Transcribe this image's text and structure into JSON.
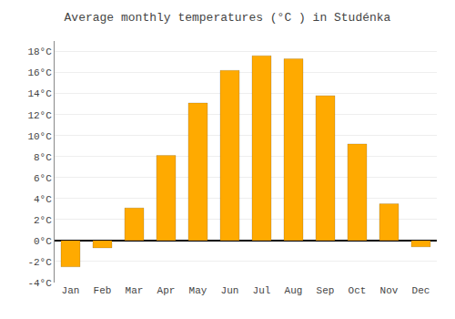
{
  "chart_data": {
    "type": "bar",
    "title": "Average monthly temperatures (°C ) in Studénka",
    "categories": [
      "Jan",
      "Feb",
      "Mar",
      "Apr",
      "May",
      "Jun",
      "Jul",
      "Aug",
      "Sep",
      "Oct",
      "Nov",
      "Dec"
    ],
    "values": [
      -2.5,
      -0.7,
      3.1,
      8.1,
      13.1,
      16.2,
      17.6,
      17.3,
      13.8,
      9.2,
      3.5,
      -0.6
    ],
    "color": "#FFAA00",
    "ylim": [
      -4,
      19
    ],
    "yticks": [
      {
        "value": -4,
        "label": "-4°C"
      },
      {
        "value": -2,
        "label": "-2°C"
      },
      {
        "value": 0,
        "label": "0°C"
      },
      {
        "value": 2,
        "label": "2°C"
      },
      {
        "value": 4,
        "label": "4°C"
      },
      {
        "value": 6,
        "label": "6°C"
      },
      {
        "value": 8,
        "label": "8°C"
      },
      {
        "value": 10,
        "label": "10°C"
      },
      {
        "value": 12,
        "label": "12°C"
      },
      {
        "value": 14,
        "label": "14°C"
      },
      {
        "value": 16,
        "label": "16°C"
      },
      {
        "value": 18,
        "label": "18°C"
      }
    ],
    "grid": true
  }
}
